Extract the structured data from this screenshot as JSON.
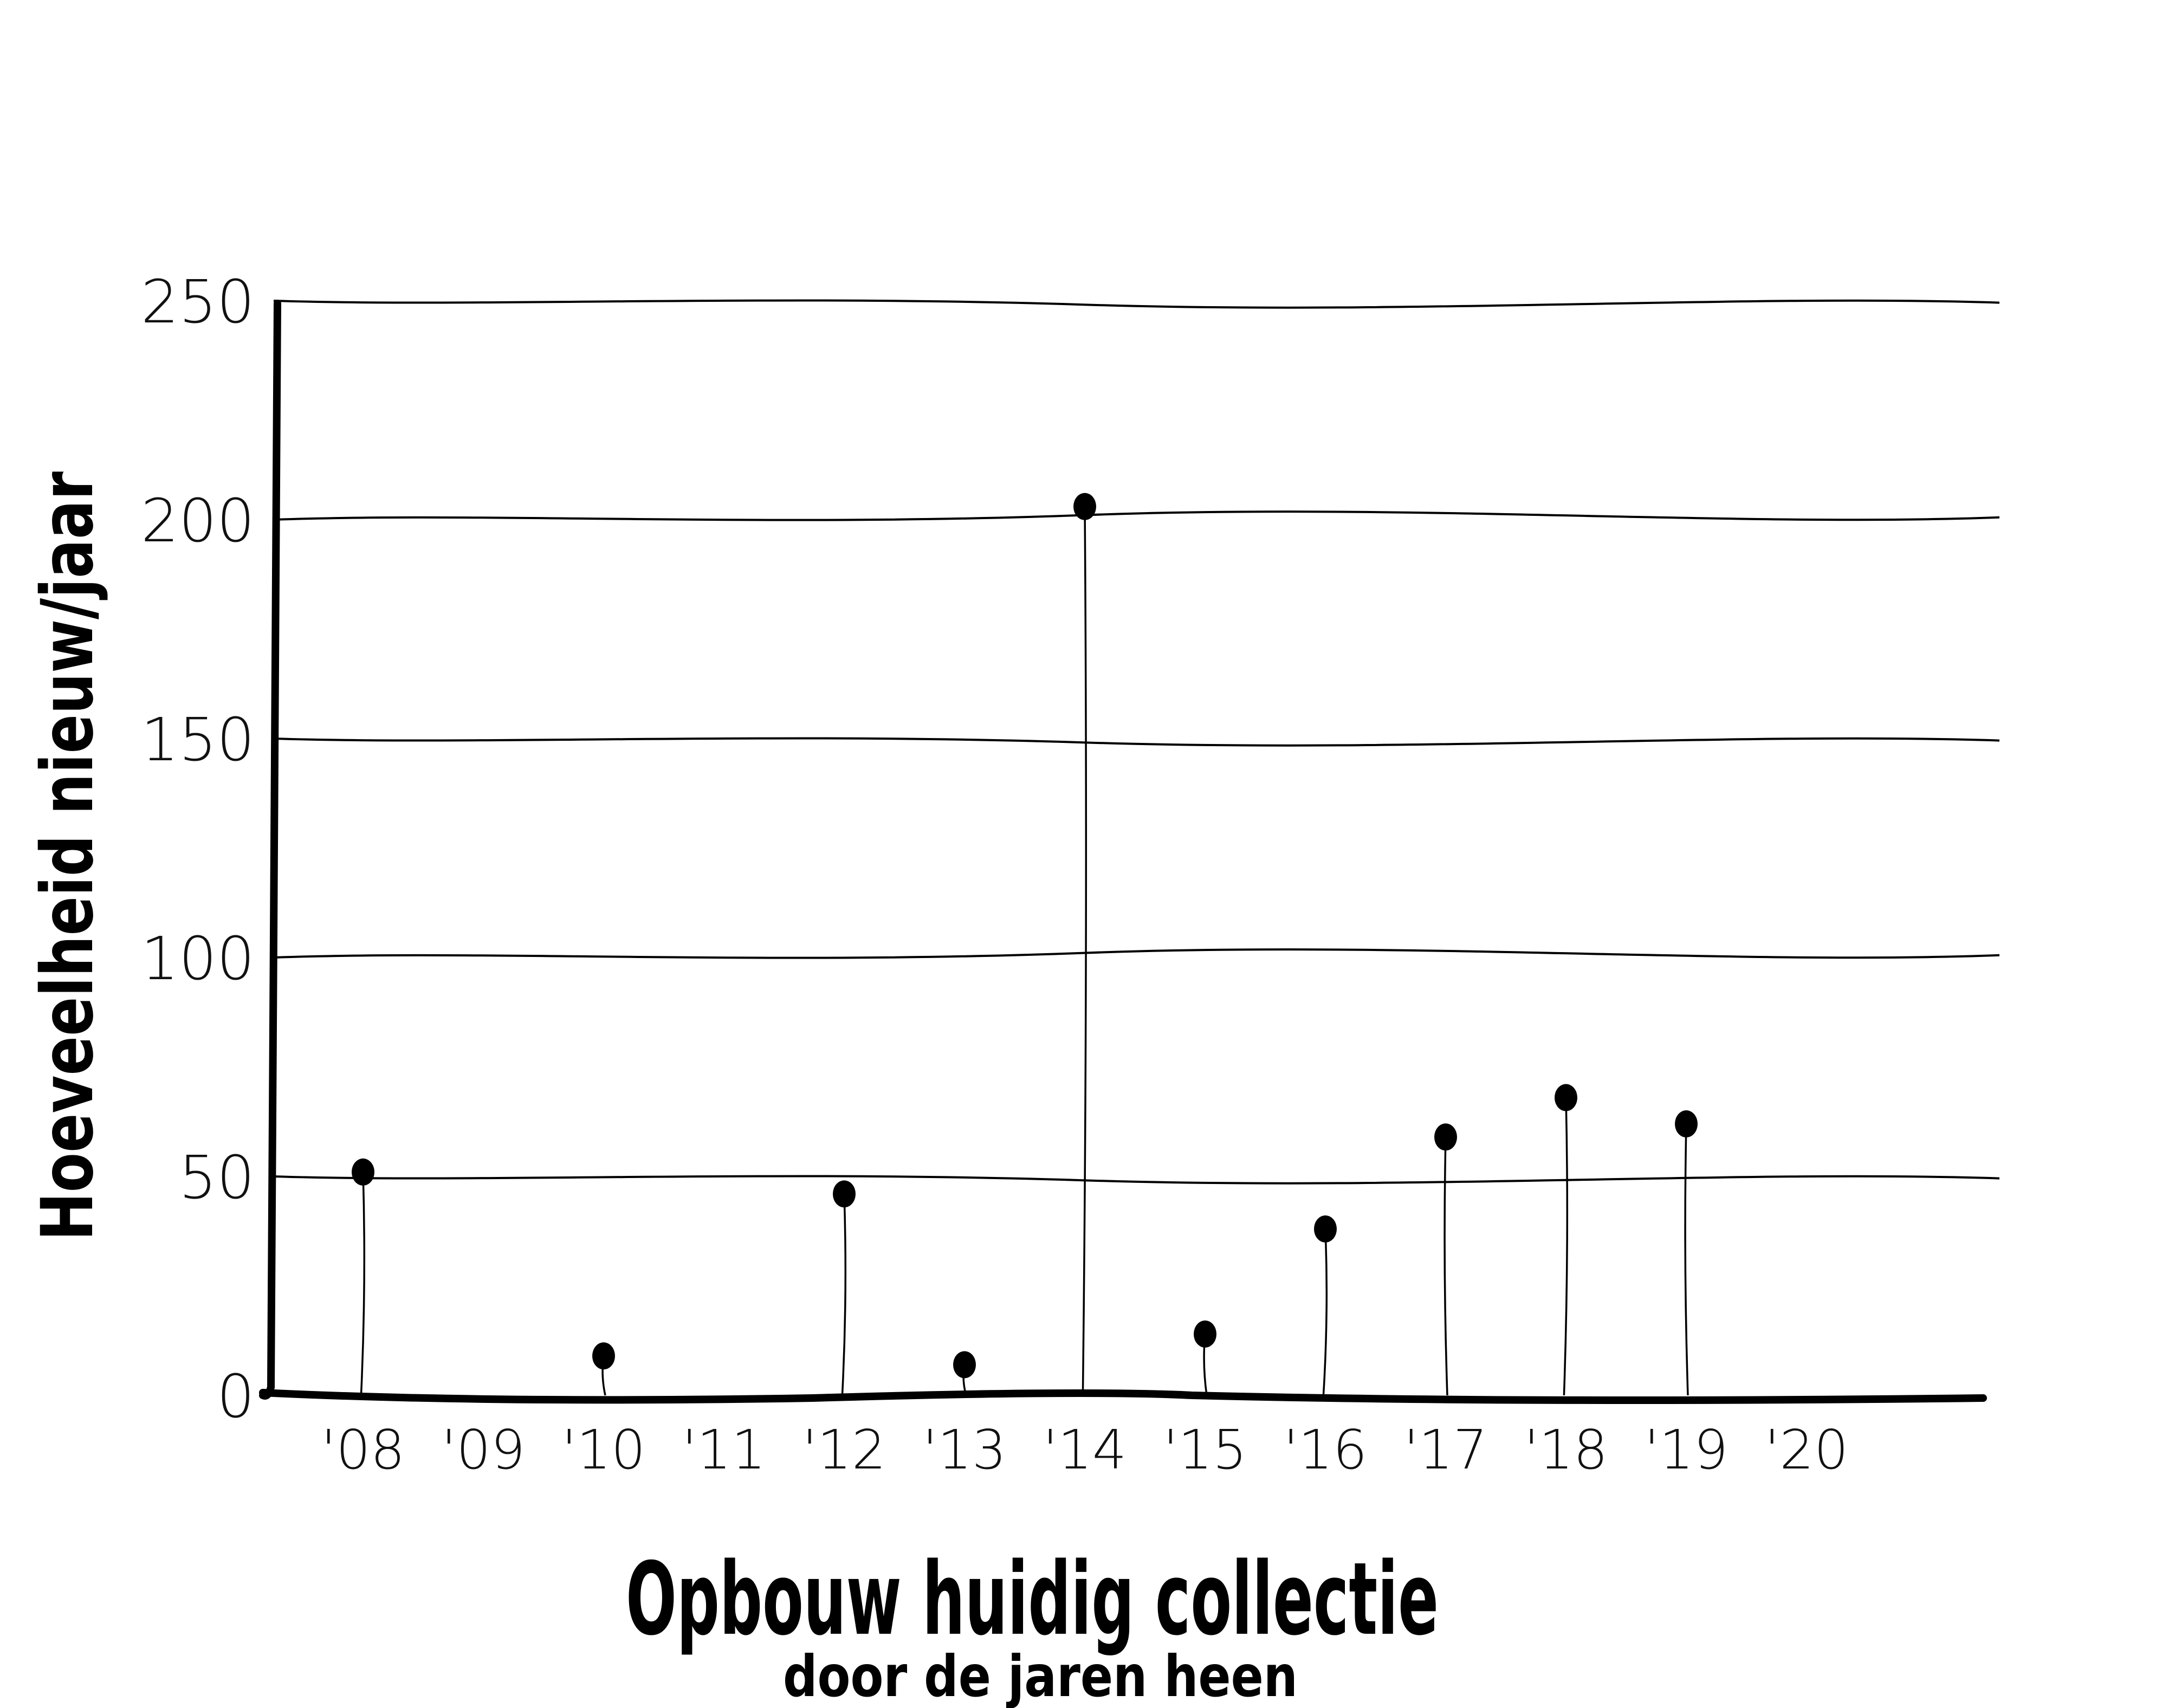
{
  "chart_data": {
    "type": "scatter",
    "style": "hand-drawn lollipop (stem) chart",
    "title": "Opbouw huidig collectie",
    "subtitle": "door de jaren heen",
    "xlabel": "",
    "ylabel": "Hoeveelheid nieuw/jaar",
    "categories": [
      "'08",
      "'09",
      "'10",
      "'11",
      "'12",
      "'13",
      "'14",
      "'15",
      "'16",
      "'17",
      "'18",
      "'19",
      "'20"
    ],
    "series": [
      {
        "points": [
          {
            "x": "'08",
            "y": 51
          },
          {
            "x": "'10",
            "y": 9
          },
          {
            "x": "'12",
            "y": 46
          },
          {
            "x": "'13",
            "y": 7
          },
          {
            "x": "'14",
            "y": 203
          },
          {
            "x": "'15",
            "y": 14
          },
          {
            "x": "'16",
            "y": 38
          },
          {
            "x": "'17",
            "y": 59
          },
          {
            "x": "'18",
            "y": 68
          },
          {
            "x": "'19",
            "y": 62
          }
        ]
      }
    ],
    "yticks": [
      "0",
      "50",
      "100",
      "150",
      "200",
      "250"
    ],
    "ytick_values": [
      0,
      50,
      100,
      150,
      200,
      250
    ],
    "ylim": [
      0,
      250
    ],
    "grid": true,
    "legend": "none",
    "colors": {
      "ink": "#000000",
      "background": "#ffffff"
    }
  }
}
